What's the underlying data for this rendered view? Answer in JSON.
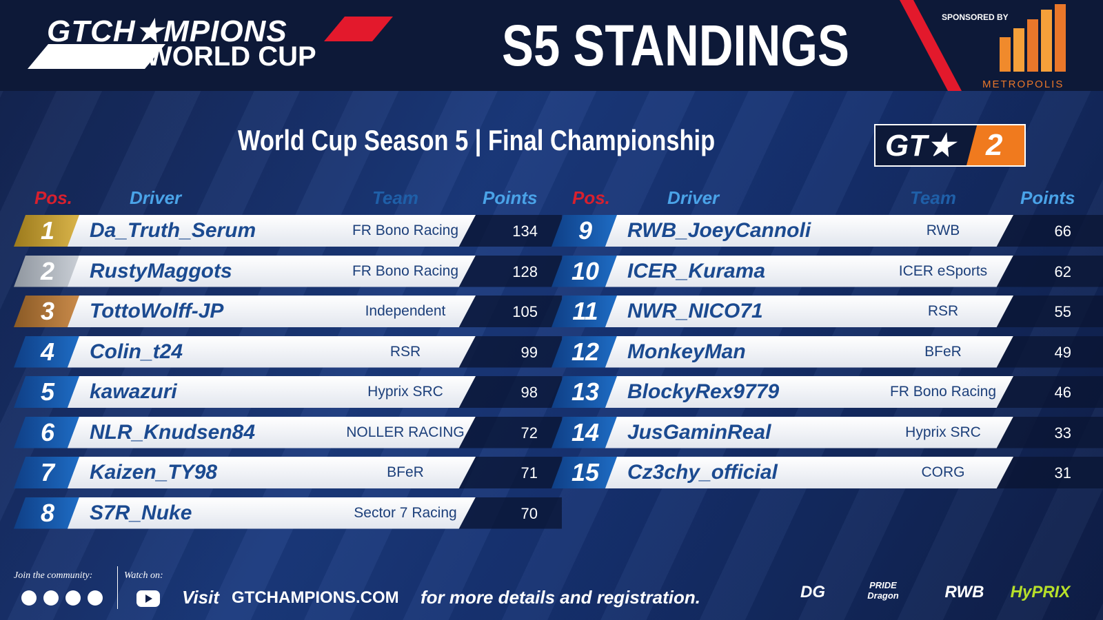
{
  "header": {
    "logo_line1": "GTCH★MPIONS",
    "logo_line2": "WORLD CUP",
    "title": "S5 STANDINGS",
    "sponsor_label": "SPONSORED BY",
    "sponsor": "METROPOLIS"
  },
  "subtitle": "World Cup Season 5 | Final Championship",
  "badge": {
    "left": "GT★",
    "right": "2"
  },
  "columns": [
    "Pos.",
    "Driver",
    "Team",
    "Points"
  ],
  "rows": [
    {
      "pos": 1,
      "driver": "Da_Truth_Serum",
      "team": "FR Bono Racing",
      "points": 134
    },
    {
      "pos": 2,
      "driver": "RustyMaggots",
      "team": "FR Bono Racing",
      "points": 128
    },
    {
      "pos": 3,
      "driver": "TottoWolff-JP",
      "team": "Independent",
      "points": 105
    },
    {
      "pos": 4,
      "driver": "Colin_t24",
      "team": "RSR",
      "points": 99
    },
    {
      "pos": 5,
      "driver": "kawazuri",
      "team": "Hyprix SRC",
      "points": 98
    },
    {
      "pos": 6,
      "driver": "NLR_Knudsen84",
      "team": "NOLLER RACING",
      "points": 72
    },
    {
      "pos": 7,
      "driver": "Kaizen_TY98",
      "team": "BFeR",
      "points": 71
    },
    {
      "pos": 8,
      "driver": "S7R_Nuke",
      "team": "Sector 7 Racing",
      "points": 70
    },
    {
      "pos": 9,
      "driver": "RWB_JoeyCannoli",
      "team": "RWB",
      "points": 66
    },
    {
      "pos": 10,
      "driver": "ICER_Kurama",
      "team": "ICER eSports",
      "points": 62
    },
    {
      "pos": 11,
      "driver": "NWR_NICO71",
      "team": "RSR",
      "points": 55
    },
    {
      "pos": 12,
      "driver": "MonkeyMan",
      "team": "BFeR",
      "points": 49
    },
    {
      "pos": 13,
      "driver": "BlockyRex9779",
      "team": "FR Bono Racing",
      "points": 46
    },
    {
      "pos": 14,
      "driver": "JusGaminReal",
      "team": "Hyprix SRC",
      "points": 33
    },
    {
      "pos": 15,
      "driver": "Cz3chy_official",
      "team": "CORG",
      "points": 31
    }
  ],
  "footer": {
    "join": "Join the community:",
    "watch": "Watch on:",
    "visit": "Visit",
    "site": "GTCHAMPIONS.COM",
    "tail": "for more details and registration.",
    "partners": [
      "DG",
      "PRIDE Dragon",
      "RWB",
      "HyPRIX"
    ]
  }
}
